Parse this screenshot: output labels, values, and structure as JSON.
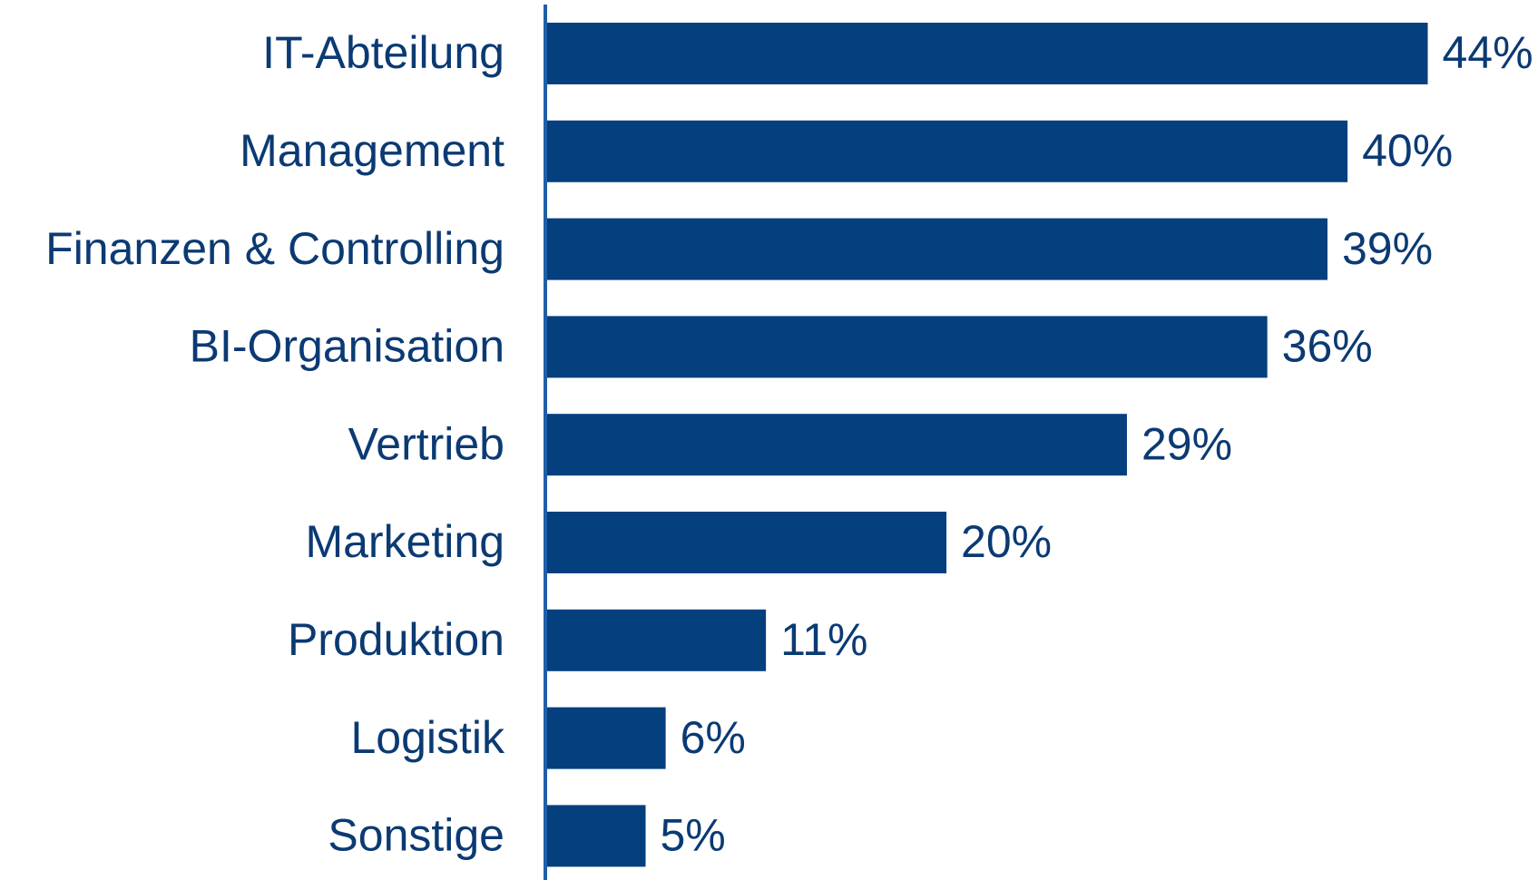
{
  "chart_data": {
    "type": "bar",
    "orientation": "horizontal",
    "categories": [
      "IT-Abteilung",
      "Management",
      "Finanzen & Controlling",
      "BI-Organisation",
      "Vertrieb",
      "Marketing",
      "Produktion",
      "Logistik",
      "Sonstige"
    ],
    "values": [
      44,
      40,
      39,
      36,
      29,
      20,
      11,
      6,
      5
    ],
    "value_labels": [
      "44%",
      "40%",
      "39%",
      "36%",
      "29%",
      "20%",
      "11%",
      "6%",
      "5%"
    ],
    "color": "#043f7e",
    "xlim": [
      0,
      49
    ]
  }
}
